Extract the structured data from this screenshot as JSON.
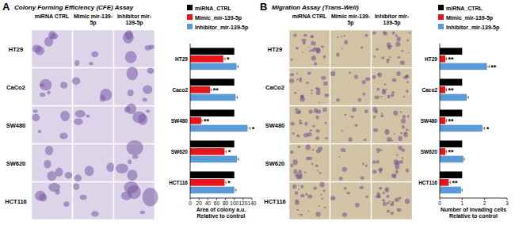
{
  "chart_data": [
    {
      "type": "bar",
      "orientation": "horizontal",
      "panel": "A",
      "title": "Colony Forming Efficiency (CFE) Assay",
      "image_columns": [
        "miRNA CTRL",
        "Mimic mir-139-5p",
        "Inhibitor mir-139-5p"
      ],
      "image_rows": [
        "HT29",
        "CaCo2",
        "SW480",
        "SW620",
        "HCT116"
      ],
      "categories": [
        "HT29",
        "Caco2",
        "SW480",
        "SW620",
        "HCT116"
      ],
      "series": [
        {
          "name": "miRNA_CTRL",
          "color": "#000000",
          "values": [
            100,
            100,
            100,
            100,
            100
          ]
        },
        {
          "name": "Mimic_mir-139-5p",
          "color": "#e8141c",
          "values": [
            75,
            45,
            25,
            78,
            78
          ],
          "errors": [
            4,
            3,
            2,
            4,
            3
          ],
          "significance": [
            "*",
            "**",
            "**",
            "*",
            "*"
          ]
        },
        {
          "name": "Inhibitor_mir-139-5p",
          "color": "#5b9bd5",
          "values": [
            105,
            103,
            130,
            106,
            100
          ],
          "errors": [
            4,
            4,
            6,
            4,
            4
          ],
          "significance": [
            null,
            null,
            "*",
            null,
            null
          ]
        }
      ],
      "xlabel": "Area of colony a.u. Relative to control",
      "xlim": [
        0,
        140
      ],
      "xticks": [
        0,
        20,
        40,
        60,
        80,
        100,
        120,
        140
      ],
      "legend": "top"
    },
    {
      "type": "bar",
      "orientation": "horizontal",
      "panel": "B",
      "title": "Migration Assay (Trans-Well)",
      "image_columns": [
        "miRNA CTRL",
        "Mimic mir-139-5p",
        "Inhibitor mir-139-5p"
      ],
      "image_rows": [
        "HT29",
        "CaCo2",
        "SW480",
        "SW620",
        "HCT116"
      ],
      "categories": [
        "HT29",
        "Caco2",
        "SW480",
        "SW620",
        "HCT116"
      ],
      "series": [
        {
          "name": "miRNA_CTRL",
          "color": "#000000",
          "values": [
            1,
            1,
            1,
            1,
            1
          ]
        },
        {
          "name": "Mimic_mir-139-5p",
          "color": "#e8141c",
          "values": [
            0.25,
            0.25,
            0.25,
            0.25,
            0.4
          ],
          "errors": [
            0.05,
            0.05,
            0.05,
            0.05,
            0.08
          ],
          "significance": [
            "**",
            "**",
            "**",
            "**",
            "**"
          ]
        },
        {
          "name": "Inhibitor_mir-139-5p",
          "color": "#5b9bd5",
          "values": [
            2.1,
            1.2,
            1.9,
            1.05,
            0.95
          ],
          "errors": [
            0.1,
            0.08,
            0.1,
            0.05,
            0.05
          ],
          "significance": [
            "**",
            null,
            "*",
            null,
            null
          ]
        }
      ],
      "xlabel": "Number of invading cells Relative to control",
      "xlim": [
        0,
        3
      ],
      "xticks": [
        0,
        1,
        2,
        3
      ],
      "legend": "top"
    }
  ]
}
